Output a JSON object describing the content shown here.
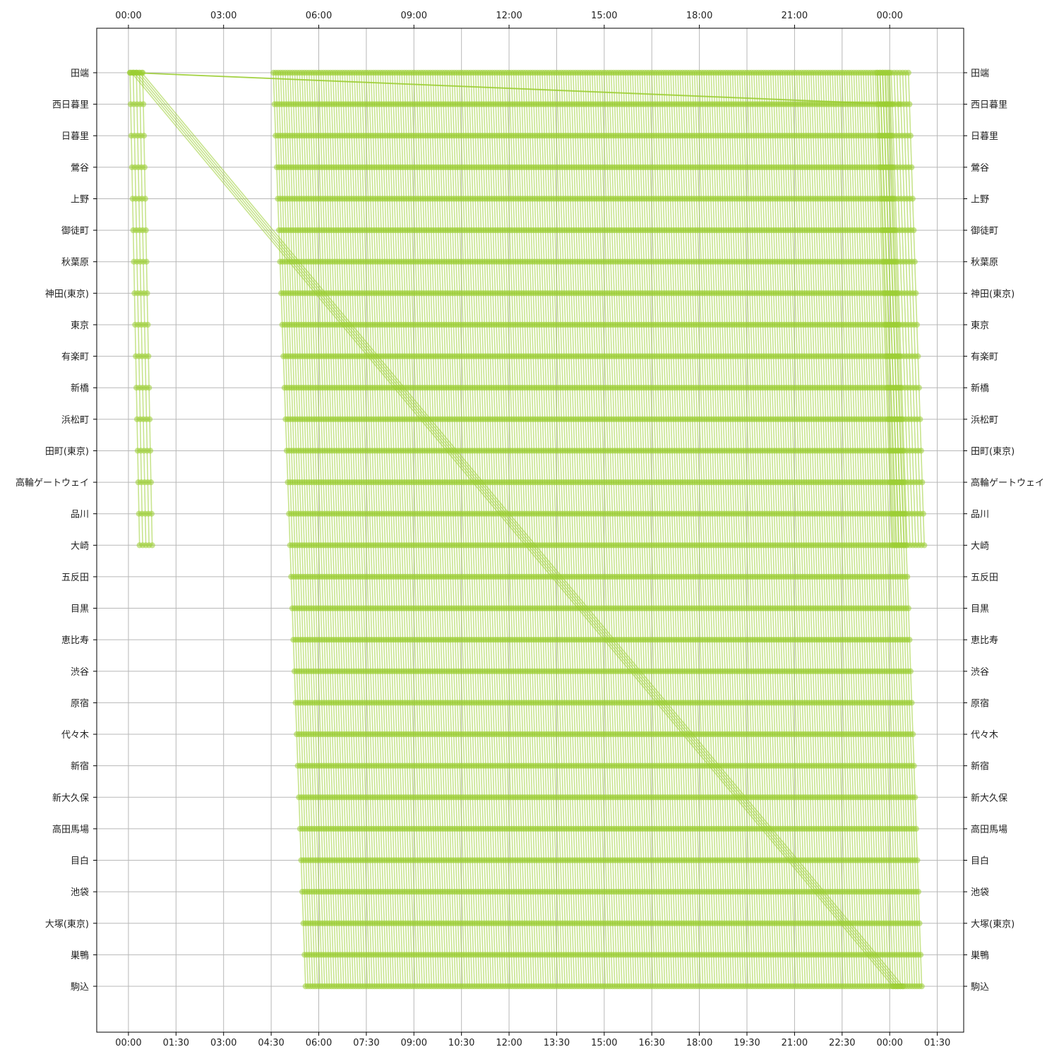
{
  "chart_data": {
    "type": "line",
    "title": "",
    "xlabel": "",
    "ylabel": "",
    "grid": true,
    "legend": "none",
    "line_color": "#9acd32",
    "x_axis": {
      "unit": "time of day (hours, values past 24 are after midnight)",
      "range": [
        -1.0,
        26.333
      ],
      "bottom_ticks": [
        {
          "value": 0,
          "label": "00:00"
        },
        {
          "value": 1.5,
          "label": "01:30"
        },
        {
          "value": 3,
          "label": "03:00"
        },
        {
          "value": 4.5,
          "label": "04:30"
        },
        {
          "value": 6,
          "label": "06:00"
        },
        {
          "value": 7.5,
          "label": "07:30"
        },
        {
          "value": 9,
          "label": "09:00"
        },
        {
          "value": 10.5,
          "label": "10:30"
        },
        {
          "value": 12,
          "label": "12:00"
        },
        {
          "value": 13.5,
          "label": "13:30"
        },
        {
          "value": 15,
          "label": "15:00"
        },
        {
          "value": 16.5,
          "label": "16:30"
        },
        {
          "value": 18,
          "label": "18:00"
        },
        {
          "value": 19.5,
          "label": "19:30"
        },
        {
          "value": 21,
          "label": "21:00"
        },
        {
          "value": 22.5,
          "label": "22:30"
        },
        {
          "value": 24,
          "label": "00:00"
        },
        {
          "value": 25.5,
          "label": "01:30"
        }
      ],
      "top_ticks": [
        {
          "value": 0,
          "label": "00:00"
        },
        {
          "value": 3,
          "label": "03:00"
        },
        {
          "value": 6,
          "label": "06:00"
        },
        {
          "value": 9,
          "label": "09:00"
        },
        {
          "value": 12,
          "label": "12:00"
        },
        {
          "value": 15,
          "label": "15:00"
        },
        {
          "value": 18,
          "label": "18:00"
        },
        {
          "value": 21,
          "label": "21:00"
        },
        {
          "value": 24,
          "label": "00:00"
        }
      ]
    },
    "stations": [
      "田端",
      "西日暮里",
      "日暮里",
      "鶯谷",
      "上野",
      "御徒町",
      "秋葉原",
      "神田(東京)",
      "東京",
      "有楽町",
      "新橋",
      "浜松町",
      "田町(東京)",
      "高輪ゲートウェイ",
      "品川",
      "大崎",
      "五反田",
      "目黒",
      "恵比寿",
      "渋谷",
      "原宿",
      "代々木",
      "新宿",
      "新大久保",
      "高田馬場",
      "目白",
      "池袋",
      "大塚(東京)",
      "巣鴨",
      "駒込"
    ],
    "series_groups": [
      {
        "description": "early trains 田端→大崎 after midnight",
        "from_station": 0,
        "to_station": 15,
        "first_departure": 0.05,
        "last_departure": 0.45,
        "headway_hours": 0.1,
        "minutes_per_station": 1.2
      },
      {
        "description": "trains 田端→駒込 (clockwise loop, partial)",
        "from_station": 0,
        "to_station": 29,
        "first_departure": 4.57,
        "last_departure": 24.05,
        "headway_hours": 0.075,
        "minutes_per_station": 2.1
      },
      {
        "description": "trains 田端→大崎 late evening tail",
        "from_station": 0,
        "to_station": 15,
        "first_departure": 23.6,
        "last_departure": 24.6,
        "headway_hours": 0.09,
        "minutes_per_station": 2.0
      },
      {
        "description": "long diagonal runs 田端(00:10) → 駒込(00:30 next day)",
        "from_station": 0,
        "to_station": 29,
        "departures": [
          0.1,
          0.18,
          0.26,
          0.34,
          0.42
        ],
        "arrival_offset_hours": 24.2
      },
      {
        "description": "return runs 田端 (early) → 西日暮里 (late night)",
        "from_station": 0,
        "to_station": 1,
        "departures": [
          0.05,
          0.15,
          0.25
        ],
        "arrival_times": [
          23.9,
          24.1,
          24.3
        ]
      }
    ]
  }
}
